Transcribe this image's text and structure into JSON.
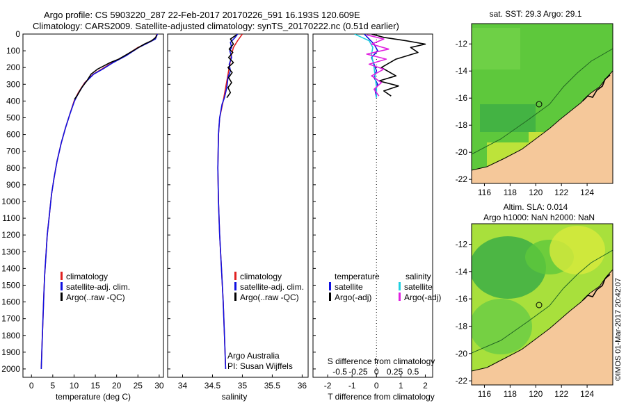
{
  "header": {
    "line1": "Argo profile: CS 5903220_287 22-Feb-2017 20170226_591 16.193S 120.609E",
    "line2": "Climatology: CARS2009. Satellite-adjusted climatology: synTS_20170222.nc (0.51d earlier)"
  },
  "colors": {
    "climatology": "#e02020",
    "satellite": "#1010e0",
    "argo": "#000000",
    "satellite_salinity": "#20d0e0",
    "argo_salinity": "#e020e0",
    "land": "#f5c89a"
  },
  "chart_data": [
    {
      "type": "line",
      "id": "temperature",
      "xlabel": "temperature (deg C)",
      "ylabel": "",
      "xlim": [
        -2,
        31
      ],
      "ylim": [
        2050,
        0
      ],
      "xticks": [
        0,
        5,
        10,
        15,
        20,
        25,
        30
      ],
      "yticks": [
        0,
        100,
        200,
        300,
        400,
        500,
        600,
        700,
        800,
        900,
        1000,
        1100,
        1200,
        1300,
        1400,
        1500,
        1600,
        1700,
        1800,
        1900,
        2000
      ],
      "legend": [
        "climatology",
        "satellite-adj. clim.",
        "Argo(..raw -QC)"
      ],
      "series": [
        {
          "name": "climatology",
          "color": "#e02020",
          "points": [
            [
              29.5,
              0
            ],
            [
              29.0,
              30
            ],
            [
              27.5,
              50
            ],
            [
              25,
              80
            ],
            [
              22,
              130
            ],
            [
              19,
              170
            ],
            [
              16.5,
              210
            ],
            [
              14.5,
              240
            ],
            [
              12.5,
              290
            ],
            [
              11,
              350
            ],
            [
              10,
              400
            ],
            [
              9,
              480
            ],
            [
              8,
              560
            ],
            [
              7,
              650
            ],
            [
              6,
              760
            ],
            [
              5.3,
              860
            ],
            [
              4.7,
              960
            ],
            [
              4.2,
              1080
            ],
            [
              3.7,
              1200
            ],
            [
              3.4,
              1320
            ],
            [
              3.1,
              1440
            ],
            [
              2.9,
              1560
            ],
            [
              2.7,
              1700
            ],
            [
              2.5,
              1850
            ],
            [
              2.3,
              2000
            ]
          ]
        },
        {
          "name": "satellite-adj. clim.",
          "color": "#1010e0",
          "points": [
            [
              29.6,
              0
            ],
            [
              29.1,
              30
            ],
            [
              27.6,
              50
            ],
            [
              25.2,
              80
            ],
            [
              22.2,
              130
            ],
            [
              19.2,
              170
            ],
            [
              16.7,
              210
            ],
            [
              14.6,
              240
            ],
            [
              12.6,
              290
            ],
            [
              11.1,
              350
            ],
            [
              10.1,
              400
            ],
            [
              9,
              480
            ],
            [
              8,
              560
            ],
            [
              7,
              650
            ],
            [
              6,
              760
            ],
            [
              5.3,
              860
            ],
            [
              4.7,
              960
            ],
            [
              4.2,
              1080
            ],
            [
              3.7,
              1200
            ],
            [
              3.4,
              1320
            ],
            [
              3.1,
              1440
            ],
            [
              2.9,
              1560
            ],
            [
              2.7,
              1700
            ],
            [
              2.5,
              1850
            ],
            [
              2.3,
              2000
            ]
          ]
        },
        {
          "name": "Argo(..raw -QC)",
          "color": "#000000",
          "points": [
            [
              29.4,
              5
            ],
            [
              29.2,
              20
            ],
            [
              28.2,
              40
            ],
            [
              26.5,
              60
            ],
            [
              24.5,
              90
            ],
            [
              22.5,
              120
            ],
            [
              20.5,
              150
            ],
            [
              18.5,
              170
            ],
            [
              17,
              190
            ],
            [
              15.5,
              210
            ],
            [
              14,
              240
            ],
            [
              13,
              280
            ],
            [
              11.8,
              320
            ],
            [
              10.9,
              360
            ],
            [
              10.1,
              390
            ]
          ]
        }
      ]
    },
    {
      "type": "line",
      "id": "salinity",
      "xlabel": "salinity",
      "xlim": [
        33.75,
        36.1
      ],
      "ylim": [
        2050,
        0
      ],
      "xticks": [
        34,
        34.5,
        35,
        35.5,
        36
      ],
      "legend": [
        "climatology",
        "satellite-adj. clim.",
        "Argo(..raw -QC)"
      ],
      "annotation": [
        "Argo Australia",
        "PI: Susan Wijffels"
      ],
      "series": [
        {
          "name": "climatology",
          "color": "#e02020",
          "points": [
            [
              35.0,
              0
            ],
            [
              34.96,
              20
            ],
            [
              34.92,
              40
            ],
            [
              34.85,
              80
            ],
            [
              34.82,
              120
            ],
            [
              34.8,
              160
            ],
            [
              34.78,
              200
            ],
            [
              34.75,
              260
            ],
            [
              34.72,
              320
            ],
            [
              34.68,
              400
            ],
            [
              34.62,
              500
            ],
            [
              34.6,
              600
            ],
            [
              34.59,
              800
            ],
            [
              34.6,
              1000
            ],
            [
              34.62,
              1200
            ],
            [
              34.65,
              1400
            ],
            [
              34.68,
              1600
            ],
            [
              34.7,
              1800
            ],
            [
              34.72,
              2000
            ]
          ]
        },
        {
          "name": "satellite-adj. clim.",
          "color": "#1010e0",
          "points": [
            [
              34.92,
              0
            ],
            [
              34.88,
              20
            ],
            [
              34.8,
              50
            ],
            [
              34.82,
              80
            ],
            [
              34.79,
              100
            ],
            [
              34.82,
              140
            ],
            [
              34.78,
              180
            ],
            [
              34.8,
              220
            ],
            [
              34.76,
              260
            ],
            [
              34.74,
              320
            ],
            [
              34.7,
              380
            ],
            [
              34.66,
              420
            ],
            [
              34.62,
              500
            ],
            [
              34.6,
              600
            ],
            [
              34.59,
              800
            ],
            [
              34.6,
              1000
            ],
            [
              34.62,
              1200
            ],
            [
              34.65,
              1400
            ],
            [
              34.68,
              1600
            ],
            [
              34.7,
              1800
            ],
            [
              34.72,
              2000
            ]
          ]
        },
        {
          "name": "Argo(..raw -QC)",
          "color": "#000000",
          "points": [
            [
              34.9,
              5
            ],
            [
              34.8,
              30
            ],
            [
              34.85,
              60
            ],
            [
              34.78,
              90
            ],
            [
              34.84,
              110
            ],
            [
              34.77,
              140
            ],
            [
              34.85,
              170
            ],
            [
              34.76,
              200
            ],
            [
              34.83,
              230
            ],
            [
              34.77,
              260
            ],
            [
              34.82,
              290
            ],
            [
              34.76,
              320
            ],
            [
              34.8,
              350
            ],
            [
              34.74,
              380
            ]
          ]
        }
      ]
    },
    {
      "type": "line",
      "id": "difference",
      "xlabel": "T difference from climatology",
      "xlabel_top": "S difference from climatology",
      "xlim": [
        -2.6,
        2.3
      ],
      "ylim": [
        2050,
        0
      ],
      "xticks": [
        -2,
        -1,
        0,
        1,
        2
      ],
      "xticks_s": [
        {
          "pos": -1.5,
          "label": "-0.5"
        },
        {
          "pos": -0.75,
          "label": "-0.25"
        },
        {
          "pos": 0,
          "label": "0"
        },
        {
          "pos": 0.75,
          "label": "0.25"
        },
        {
          "pos": 1.5,
          "label": "0.5"
        }
      ],
      "legend_headers": [
        "temperature",
        "salinity"
      ],
      "legend": [
        "satellite",
        "Argo(-adj)",
        "satellite",
        "Argo(-adj)"
      ],
      "series": [
        {
          "name": "T satellite",
          "color": "#1010e0",
          "points": [
            [
              -0.5,
              0
            ],
            [
              -0.3,
              30
            ],
            [
              -0.1,
              60
            ],
            [
              0.05,
              100
            ],
            [
              -0.2,
              140
            ],
            [
              -0.1,
              180
            ],
            [
              0,
              220
            ],
            [
              -0.1,
              260
            ],
            [
              0.05,
              300
            ],
            [
              -0.05,
              340
            ],
            [
              0,
              380
            ]
          ]
        },
        {
          "name": "T Argo(-adj)",
          "color": "#000000",
          "points": [
            [
              -0.2,
              0
            ],
            [
              0.3,
              20
            ],
            [
              1.2,
              40
            ],
            [
              2.0,
              60
            ],
            [
              1.4,
              80
            ],
            [
              1.7,
              110
            ],
            [
              0.8,
              150
            ],
            [
              0.2,
              200
            ],
            [
              0.8,
              250
            ],
            [
              0.1,
              280
            ],
            [
              0.9,
              310
            ],
            [
              0.3,
              340
            ],
            [
              0.6,
              370
            ]
          ]
        },
        {
          "name": "S satellite",
          "color": "#20d0e0",
          "points": [
            [
              -0.9,
              0
            ],
            [
              -0.6,
              20
            ],
            [
              -0.3,
              40
            ],
            [
              -0.15,
              80
            ],
            [
              -0.2,
              120
            ],
            [
              -0.15,
              160
            ],
            [
              -0.1,
              200
            ],
            [
              -0.05,
              260
            ],
            [
              0,
              320
            ],
            [
              0,
              380
            ]
          ]
        },
        {
          "name": "S Argo(-adj)",
          "color": "#e020e0",
          "points": [
            [
              -0.4,
              5
            ],
            [
              0.3,
              30
            ],
            [
              -0.2,
              60
            ],
            [
              0.5,
              90
            ],
            [
              -0.4,
              120
            ],
            [
              0.4,
              150
            ],
            [
              -0.3,
              180
            ],
            [
              0.3,
              210
            ],
            [
              -0.2,
              250
            ],
            [
              0.2,
              290
            ],
            [
              -0.1,
              330
            ],
            [
              0.1,
              370
            ]
          ]
        }
      ]
    },
    {
      "type": "heatmap",
      "id": "sst-map",
      "title": "sat. SST: 29.3 Argo: 29.1",
      "xticks": [
        116,
        118,
        120,
        122,
        124
      ],
      "yticks": [
        -12,
        -14,
        -16,
        -18,
        -20,
        -22
      ],
      "xlim": [
        115,
        126
      ],
      "ylim": [
        -22.3,
        -10.5
      ],
      "argo_position": [
        120.609,
        -16.193
      ]
    },
    {
      "type": "heatmap",
      "id": "sla-map",
      "title": "Altim. SLA: 0.014",
      "subtitle": "Argo h1000: NaN h2000: NaN",
      "xticks": [
        116,
        118,
        120,
        122,
        124
      ],
      "yticks": [
        -12,
        -14,
        -16,
        -18,
        -20,
        -22
      ],
      "xlim": [
        115,
        126
      ],
      "ylim": [
        -22.3,
        -10.5
      ],
      "argo_position": [
        120.609,
        -16.193
      ]
    }
  ],
  "credit": "©IMOS 01-Mar-2017 20:42:07"
}
